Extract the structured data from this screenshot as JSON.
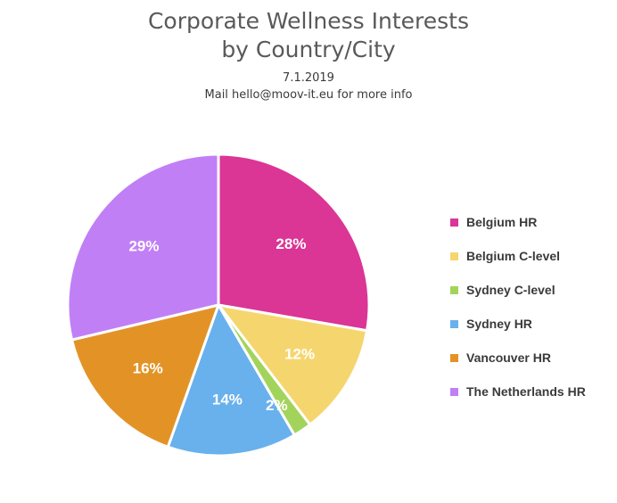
{
  "chart_data": {
    "type": "pie",
    "title_lines": [
      "Corporate Wellness Interests",
      "by Country/City"
    ],
    "subtitle_lines": [
      "7.1.2019",
      "Mail hello@moov-it.eu for more info"
    ],
    "categories": [
      "Belgium HR",
      "Belgium C-level",
      "Sydney C-level",
      "Sydney HR",
      "Vancouver HR",
      "The Netherlands HR"
    ],
    "values": [
      28,
      12,
      2,
      14,
      16,
      29
    ],
    "value_labels": [
      "28%",
      "12%",
      "2%",
      "14%",
      "16%",
      "29%"
    ],
    "colors": [
      "#DB3596",
      "#F5D66E",
      "#A2D45B",
      "#68B1EC",
      "#E39326",
      "#C17FF5"
    ],
    "legend_position": "right"
  }
}
